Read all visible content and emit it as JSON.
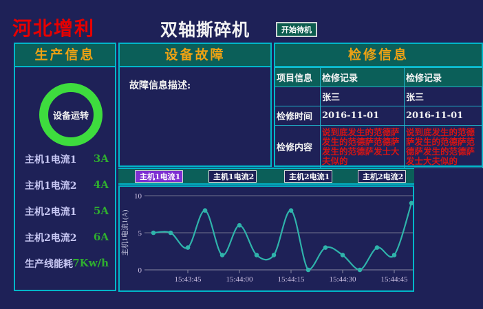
{
  "header": {
    "brand": "河北增利",
    "title": "双轴撕碎机",
    "standby_button": "开始待机"
  },
  "production": {
    "title": "生产信息",
    "status": "设备运转",
    "metrics": [
      {
        "label": "主机1电流1",
        "value": "3A"
      },
      {
        "label": "主机1电流2",
        "value": "4A"
      },
      {
        "label": "主机2电流1",
        "value": "5A"
      },
      {
        "label": "主机2电流2",
        "value": "6A"
      },
      {
        "label": "生产线能耗",
        "value": "7Kw/h"
      }
    ]
  },
  "fault": {
    "title": "设备故障",
    "description_label": "故障信息描述:"
  },
  "maintenance": {
    "title": "检修信息",
    "table": {
      "rows": [
        {
          "label": "项目信息",
          "value": "检修记录",
          "value2": "检修记录"
        },
        {
          "label": "",
          "value": "张三",
          "value2": "张三"
        },
        {
          "label": "检修时间",
          "value": "2016-11-01",
          "value2": "2016-11-01"
        },
        {
          "label": "检修内容",
          "value": "说到底发生的范德萨发生的范德萨范德萨发生的范德萨发士大夫似的",
          "value2": "说到底发生的范德萨发生的范德萨范德萨发生的范德萨发士大夫似的"
        }
      ]
    }
  },
  "trend": {
    "buttons": [
      {
        "label": "主机1电流1",
        "active": true
      },
      {
        "label": "主机1电流2",
        "active": false
      },
      {
        "label": "主机2电流1",
        "active": false
      },
      {
        "label": "主机2电流2",
        "active": false
      }
    ]
  },
  "chart_data": {
    "type": "line",
    "title": "",
    "ylabel": "主机1电流1(A)",
    "xlabel": "",
    "ylim": [
      0,
      10
    ],
    "yticks": [
      0,
      5,
      10
    ],
    "grid": true,
    "x": [
      "15:43:35",
      "15:43:40",
      "15:43:45",
      "15:43:50",
      "15:43:55",
      "15:44:00",
      "15:44:05",
      "15:44:10",
      "15:44:15",
      "15:44:20",
      "15:44:25",
      "15:44:30",
      "15:44:35",
      "15:44:40",
      "15:44:45",
      "15:44:50"
    ],
    "values": [
      5,
      5,
      3,
      8,
      2,
      6,
      2,
      2,
      8,
      0,
      3,
      2,
      0,
      3,
      2,
      9
    ],
    "xtick_labels": [
      "15:43:45",
      "15:44:00",
      "15:44:15",
      "15:44:30",
      "15:44:45"
    ],
    "line_color": "#2fb3ab"
  },
  "colors": {
    "background": "#1e2157",
    "panel_border_cyan": "#00b7c9",
    "header_bg_teal": "#0b5f59",
    "header_text_orange": "#efa213",
    "brand_red": "#e60000",
    "status_ring_green": "#3edc3e",
    "value_green": "#2fae2f",
    "label_lavender": "#c6c6f2",
    "alert_red": "#d41414",
    "active_button_purple": "#7e2fd2",
    "chart_line_teal": "#2fb3ab"
  }
}
